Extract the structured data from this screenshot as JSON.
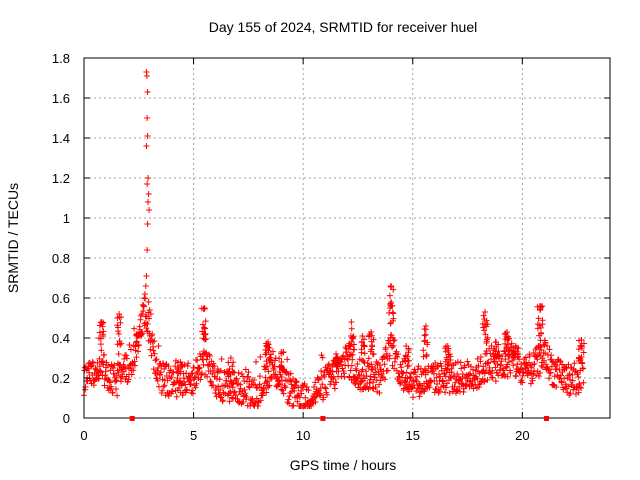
{
  "chart_data": {
    "type": "scatter",
    "title": "Day 155 of 2024, SRMTID for receiver huel",
    "xlabel": "GPS time / hours",
    "ylabel": "SRMTID / TECUs",
    "xlim": [
      0,
      24
    ],
    "ylim": [
      0,
      1.8
    ],
    "xticks": [
      0,
      5,
      10,
      15,
      20
    ],
    "yticks": [
      0,
      0.2,
      0.4,
      0.6,
      0.8,
      1,
      1.2,
      1.4,
      1.6,
      1.8
    ],
    "ytick_labels": [
      "0",
      "0.2",
      "0.4",
      "0.6",
      "0.8",
      "1",
      "1.2",
      "1.4",
      "1.6",
      "1.8"
    ],
    "grid": true,
    "marker": "+",
    "color": "#ff0000",
    "axis_markers": [
      2.2,
      10.9,
      21.1
    ],
    "profile": [
      [
        0.0,
        0.18
      ],
      [
        0.5,
        0.22
      ],
      [
        0.8,
        0.3
      ],
      [
        1.0,
        0.2
      ],
      [
        1.5,
        0.18
      ],
      [
        1.8,
        0.3
      ],
      [
        2.0,
        0.22
      ],
      [
        2.3,
        0.32
      ],
      [
        2.6,
        0.45
      ],
      [
        2.8,
        0.55
      ],
      [
        3.1,
        0.35
      ],
      [
        3.5,
        0.2
      ],
      [
        4.0,
        0.18
      ],
      [
        5.0,
        0.2
      ],
      [
        5.5,
        0.3
      ],
      [
        6.0,
        0.17
      ],
      [
        7.0,
        0.15
      ],
      [
        8.0,
        0.13
      ],
      [
        8.5,
        0.25
      ],
      [
        9.0,
        0.2
      ],
      [
        9.5,
        0.12
      ],
      [
        10.0,
        0.09
      ],
      [
        10.5,
        0.12
      ],
      [
        11.0,
        0.18
      ],
      [
        11.5,
        0.22
      ],
      [
        12.0,
        0.3
      ],
      [
        12.5,
        0.2
      ],
      [
        13.0,
        0.22
      ],
      [
        13.5,
        0.2
      ],
      [
        14.0,
        0.35
      ],
      [
        14.5,
        0.22
      ],
      [
        15.0,
        0.18
      ],
      [
        16.0,
        0.2
      ],
      [
        17.0,
        0.2
      ],
      [
        18.0,
        0.22
      ],
      [
        18.5,
        0.28
      ],
      [
        19.0,
        0.25
      ],
      [
        19.5,
        0.3
      ],
      [
        20.0,
        0.22
      ],
      [
        20.5,
        0.25
      ],
      [
        21.0,
        0.32
      ],
      [
        21.5,
        0.22
      ],
      [
        22.0,
        0.2
      ],
      [
        22.5,
        0.18
      ],
      [
        22.8,
        0.25
      ]
    ],
    "bursts": [
      [
        0.8,
        0.48,
        4
      ],
      [
        1.6,
        0.52,
        4
      ],
      [
        2.5,
        0.42,
        5
      ],
      [
        4.4,
        0.28,
        3
      ],
      [
        5.5,
        0.55,
        5
      ],
      [
        6.7,
        0.3,
        3
      ],
      [
        8.4,
        0.38,
        5
      ],
      [
        9.0,
        0.33,
        4
      ],
      [
        11.5,
        0.32,
        4
      ],
      [
        12.2,
        0.48,
        5
      ],
      [
        12.7,
        0.41,
        4
      ],
      [
        13.1,
        0.43,
        4
      ],
      [
        14.0,
        0.66,
        6
      ],
      [
        14.7,
        0.36,
        4
      ],
      [
        15.6,
        0.46,
        4
      ],
      [
        16.6,
        0.36,
        4
      ],
      [
        18.3,
        0.53,
        5
      ],
      [
        18.8,
        0.38,
        4
      ],
      [
        19.3,
        0.43,
        5
      ],
      [
        19.7,
        0.36,
        4
      ],
      [
        20.8,
        0.56,
        6
      ],
      [
        22.7,
        0.39,
        4
      ]
    ],
    "spike": [
      [
        2.85,
        1.73
      ],
      [
        2.87,
        1.71
      ],
      [
        2.9,
        1.63
      ],
      [
        2.88,
        1.5
      ],
      [
        2.9,
        1.41
      ],
      [
        2.85,
        1.36
      ],
      [
        2.92,
        1.2
      ],
      [
        2.88,
        1.17
      ],
      [
        2.95,
        1.12
      ],
      [
        2.92,
        1.08
      ],
      [
        2.97,
        1.04
      ],
      [
        2.9,
        0.97
      ],
      [
        2.88,
        0.84
      ],
      [
        2.85,
        0.71
      ],
      [
        2.82,
        0.66
      ],
      [
        2.78,
        0.62
      ],
      [
        2.75,
        0.6
      ],
      [
        2.95,
        0.58
      ],
      [
        3.0,
        0.54
      ],
      [
        3.05,
        0.52
      ]
    ]
  }
}
